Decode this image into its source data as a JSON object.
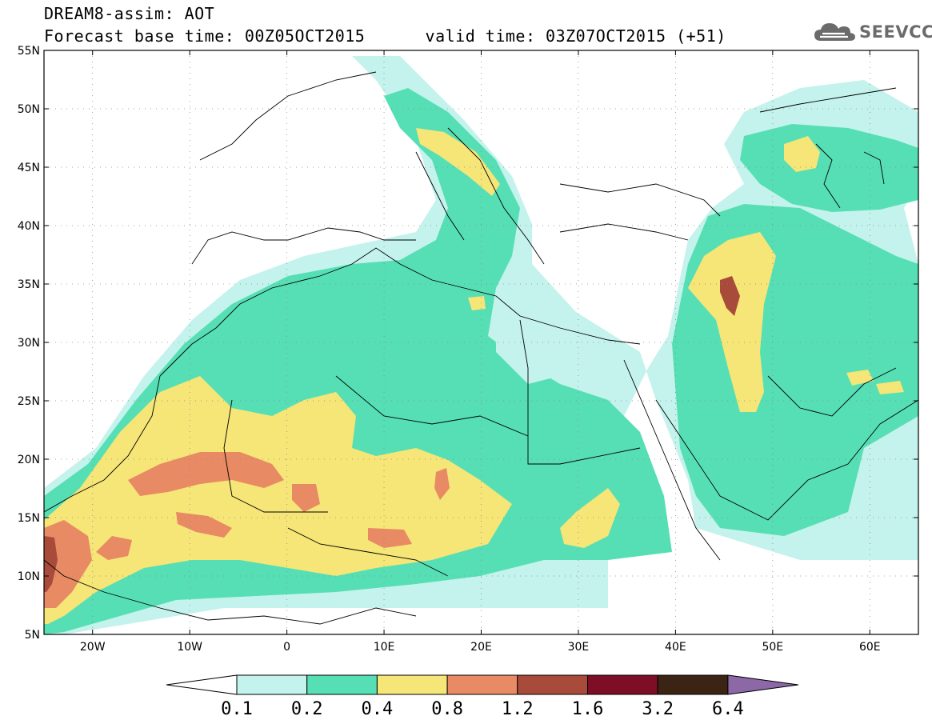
{
  "header": {
    "title_line1": "DREAM8-assim: AOT",
    "title_line2": "Forecast base time: 00Z05OCT2015      valid time: 03Z07OCT2015 (+51)",
    "logo_text": "SEEVCCC",
    "logo_icon": "cloud-icon"
  },
  "map": {
    "lon_range": [
      -25,
      65
    ],
    "lat_range": [
      5,
      55
    ],
    "lat_ticks": [
      {
        "value": 55,
        "label": "55N"
      },
      {
        "value": 50,
        "label": "50N"
      },
      {
        "value": 45,
        "label": "45N"
      },
      {
        "value": 40,
        "label": "40N"
      },
      {
        "value": 35,
        "label": "35N"
      },
      {
        "value": 30,
        "label": "30N"
      },
      {
        "value": 25,
        "label": "25N"
      },
      {
        "value": 20,
        "label": "20N"
      },
      {
        "value": 15,
        "label": "15N"
      },
      {
        "value": 10,
        "label": "10N"
      },
      {
        "value": 5,
        "label": "5N"
      }
    ],
    "lon_ticks": [
      {
        "value": -20,
        "label": "20W"
      },
      {
        "value": -10,
        "label": "10W"
      },
      {
        "value": 0,
        "label": "0"
      },
      {
        "value": 10,
        "label": "10E"
      },
      {
        "value": 20,
        "label": "20E"
      },
      {
        "value": 30,
        "label": "30E"
      },
      {
        "value": 40,
        "label": "40E"
      },
      {
        "value": 50,
        "label": "50E"
      },
      {
        "value": 60,
        "label": "60E"
      }
    ],
    "grid": true
  },
  "colorbar": {
    "low_color": "#ffffff",
    "bins": [
      {
        "color": "#c4f2ec"
      },
      {
        "color": "#56dfb4"
      },
      {
        "color": "#f6e577"
      },
      {
        "color": "#e88a63"
      },
      {
        "color": "#a94b3b"
      },
      {
        "color": "#7e0e25"
      },
      {
        "color": "#3b2414"
      }
    ],
    "high_color": "#8c69a6",
    "labels": [
      "0.1",
      "0.2",
      "0.4",
      "0.8",
      "1.2",
      "1.6",
      "3.2",
      "6.4"
    ]
  }
}
